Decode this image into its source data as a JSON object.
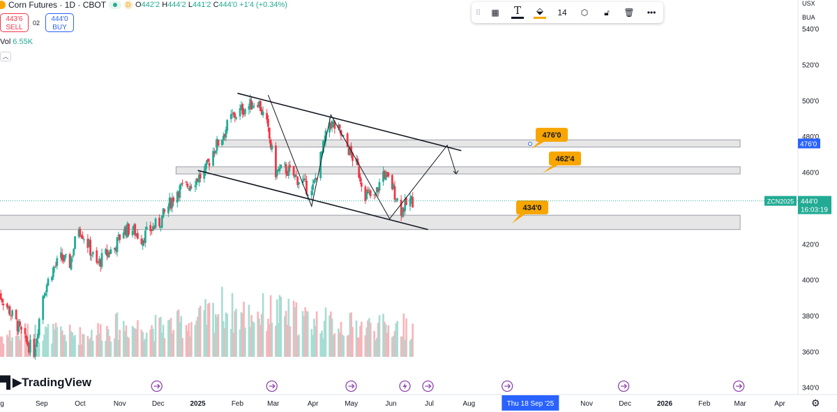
{
  "header": {
    "title": "Corn Futures · 1D · CBOT",
    "d_badge": "D",
    "o": "O",
    "o_val": "442'2",
    "h": "H",
    "h_val": "444'2",
    "l": "L",
    "l_val": "441'2",
    "c": "C",
    "c_val": "444'0",
    "change": "+1'4 (+0.34%)"
  },
  "trade": {
    "sell_price": "443'6",
    "sell_label": "SELL",
    "spread": "02",
    "buy_price": "444'0",
    "buy_label": "BUY"
  },
  "volume_legend": {
    "label": "Vol",
    "value": "6.55K"
  },
  "toolbar": {
    "font_size": "14",
    "text_color": "#131722",
    "fill_color": "#f7a600"
  },
  "price_axis_buttons": {
    "currency": "USX",
    "unit": "BUA"
  },
  "watermark": "TradingView",
  "chart_data": {
    "type": "candlestick",
    "symbol": "ZCN2025",
    "last_price": "444'0",
    "countdown": "16:03:19",
    "y_ticks": [
      "540'0",
      "520'0",
      "500'0",
      "480'0",
      "460'0",
      "440'0",
      "420'0",
      "400'0",
      "380'0",
      "360'0",
      "340'0"
    ],
    "y_tick_values": [
      540,
      520,
      500,
      480,
      460,
      440,
      420,
      400,
      380,
      360,
      340
    ],
    "ylim": [
      336,
      556
    ],
    "x_ticks": [
      "g",
      "Sep",
      "Oct",
      "Nov",
      "Dec",
      "2025",
      "Feb",
      "Mar",
      "Apr",
      "May",
      "Jun",
      "Jul",
      "Aug",
      "Nov",
      "Dec",
      "2026",
      "Feb",
      "Mar",
      "Apr"
    ],
    "x_tick_dates": [
      "2024-08-01",
      "2024-09-01",
      "2024-10-01",
      "2024-11-01",
      "2024-12-01",
      "2025-01-01",
      "2025-02-01",
      "2025-03-01",
      "2025-04-01",
      "2025-05-01",
      "2025-06-01",
      "2025-07-01",
      "2025-08-01",
      "2025-11-01",
      "2025-12-01",
      "2026-01-01",
      "2026-02-01",
      "2026-03-01",
      "2026-04-01"
    ],
    "crosshair_label": "Thu 18 Sep '25",
    "crosshair_date": "2025-09-18",
    "bullish_color": "#22ab94",
    "bearish_color": "#f23645",
    "price_path": [
      [
        "2024-07-29",
        393
      ],
      [
        "2024-08-05",
        385
      ],
      [
        "2024-08-12",
        376
      ],
      [
        "2024-08-19",
        366
      ],
      [
        "2024-08-26",
        360
      ],
      [
        "2024-09-02",
        392
      ],
      [
        "2024-09-09",
        405
      ],
      [
        "2024-09-16",
        412
      ],
      [
        "2024-09-23",
        409
      ],
      [
        "2024-09-30",
        430
      ],
      [
        "2024-10-07",
        420
      ],
      [
        "2024-10-14",
        408
      ],
      [
        "2024-10-21",
        414
      ],
      [
        "2024-10-28",
        418
      ],
      [
        "2024-11-04",
        428
      ],
      [
        "2024-11-11",
        428
      ],
      [
        "2024-11-18",
        423
      ],
      [
        "2024-11-25",
        428
      ],
      [
        "2024-12-02",
        432
      ],
      [
        "2024-12-09",
        441
      ],
      [
        "2024-12-16",
        450
      ],
      [
        "2024-12-23",
        452
      ],
      [
        "2024-12-30",
        456
      ],
      [
        "2025-01-06",
        459
      ],
      [
        "2025-01-13",
        472
      ],
      [
        "2025-01-20",
        480
      ],
      [
        "2025-01-27",
        490
      ],
      [
        "2025-02-03",
        494
      ],
      [
        "2025-02-10",
        497
      ],
      [
        "2025-02-17",
        500
      ],
      [
        "2025-02-24",
        486
      ],
      [
        "2025-03-03",
        460
      ],
      [
        "2025-03-10",
        462
      ],
      [
        "2025-03-17",
        458
      ],
      [
        "2025-03-24",
        454
      ],
      [
        "2025-03-31",
        448
      ],
      [
        "2025-04-07",
        468
      ],
      [
        "2025-04-14",
        488
      ],
      [
        "2025-04-21",
        483
      ],
      [
        "2025-04-28",
        474
      ],
      [
        "2025-05-05",
        464
      ],
      [
        "2025-05-12",
        448
      ],
      [
        "2025-05-19",
        445
      ],
      [
        "2025-05-26",
        460
      ],
      [
        "2025-06-02",
        452
      ],
      [
        "2025-06-09",
        439
      ],
      [
        "2025-06-16",
        444
      ]
    ],
    "volume_path": [
      [
        "2024-07-29",
        1.3
      ],
      [
        "2024-09-02",
        1.6
      ],
      [
        "2024-10-01",
        1.4
      ],
      [
        "2024-11-01",
        2.0
      ],
      [
        "2024-12-01",
        1.9
      ],
      [
        "2025-01-01",
        2.3
      ],
      [
        "2025-01-20",
        3.2
      ],
      [
        "2025-02-01",
        2.7
      ],
      [
        "2025-03-01",
        2.9
      ],
      [
        "2025-04-01",
        2.3
      ],
      [
        "2025-05-01",
        2.0
      ],
      [
        "2025-06-01",
        1.9
      ],
      [
        "2025-06-16",
        2.0
      ]
    ],
    "zones": [
      {
        "from": "2025-01-15",
        "to": "2026-03-01",
        "low": 474,
        "high": 478
      },
      {
        "from": "2024-12-15",
        "to": "2026-03-01",
        "low": 459,
        "high": 463
      },
      {
        "from": "2024-07-29",
        "to": "2026-03-01",
        "low": 428,
        "high": 436
      }
    ],
    "callouts": [
      {
        "text": "476'0",
        "price": 476
      },
      {
        "text": "462'4",
        "price": 462.5
      },
      {
        "text": "434'0",
        "price": 434
      }
    ],
    "callout_color": "#f7a600",
    "zone_tag": "476'0",
    "channel_lines": [
      {
        "from": [
          "2025-02-01",
          504
        ],
        "to": [
          "2025-07-26",
          472
        ]
      },
      {
        "from": [
          "2025-01-01",
          461
        ],
        "to": [
          "2025-06-30",
          428
        ]
      }
    ],
    "projection": [
      [
        "2025-02-25",
        503
      ],
      [
        "2025-03-31",
        441
      ],
      [
        "2025-04-15",
        492
      ],
      [
        "2025-05-31",
        434
      ],
      [
        "2025-07-15",
        475
      ],
      [
        "2025-07-22",
        459
      ]
    ]
  }
}
